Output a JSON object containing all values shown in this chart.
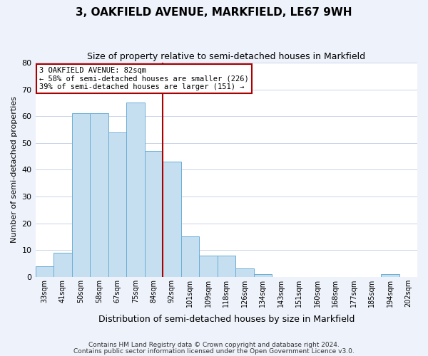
{
  "title": "3, OAKFIELD AVENUE, MARKFIELD, LE67 9WH",
  "subtitle": "Size of property relative to semi-detached houses in Markfield",
  "xlabel": "Distribution of semi-detached houses by size in Markfield",
  "ylabel": "Number of semi-detached properties",
  "bin_labels": [
    "33sqm",
    "41sqm",
    "50sqm",
    "58sqm",
    "67sqm",
    "75sqm",
    "84sqm",
    "92sqm",
    "101sqm",
    "109sqm",
    "118sqm",
    "126sqm",
    "134sqm",
    "143sqm",
    "151sqm",
    "160sqm",
    "168sqm",
    "177sqm",
    "185sqm",
    "194sqm",
    "202sqm"
  ],
  "bar_heights": [
    4,
    9,
    61,
    61,
    54,
    65,
    47,
    43,
    15,
    8,
    8,
    3,
    1,
    0,
    0,
    0,
    0,
    0,
    0,
    1,
    0
  ],
  "bar_color": "#c6dff0",
  "bar_edge_color": "#6aaed6",
  "highlight_bar_index": 6,
  "highlight_color": "#aa0000",
  "annotation_title": "3 OAKFIELD AVENUE: 82sqm",
  "annotation_line1": "← 58% of semi-detached houses are smaller (226)",
  "annotation_line2": "39% of semi-detached houses are larger (151) →",
  "annotation_box_color": "#ffffff",
  "annotation_box_edge": "#aa0000",
  "ylim": [
    0,
    80
  ],
  "yticks": [
    0,
    10,
    20,
    30,
    40,
    50,
    60,
    70,
    80
  ],
  "footer1": "Contains HM Land Registry data © Crown copyright and database right 2024.",
  "footer2": "Contains public sector information licensed under the Open Government Licence v3.0.",
  "background_color": "#eef2fb",
  "plot_bg_color": "#ffffff",
  "grid_color": "#c8d4e8"
}
